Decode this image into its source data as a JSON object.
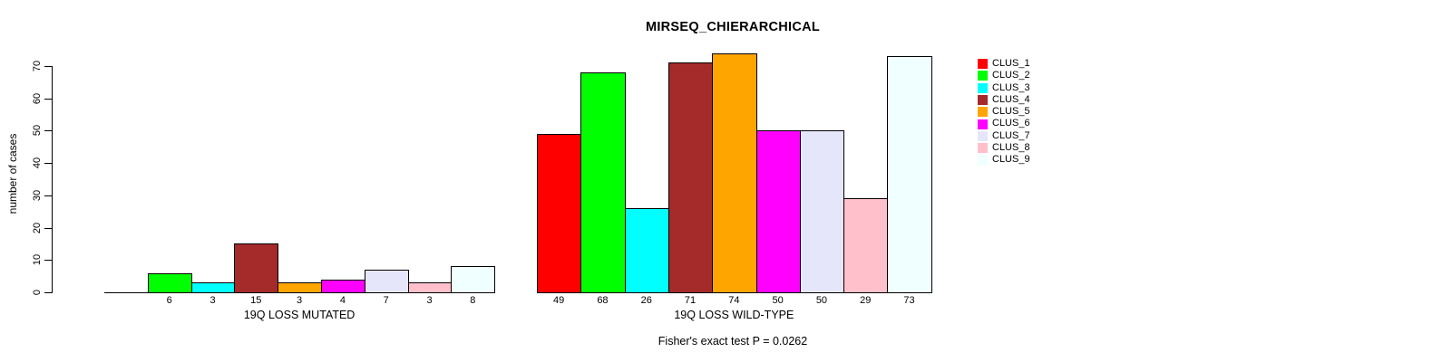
{
  "chart_data": {
    "type": "bar",
    "title": "MIRSEQ_CHIERARCHICAL",
    "ylabel": "number of cases",
    "ylim": [
      0,
      70
    ],
    "yticks": [
      0,
      10,
      20,
      30,
      40,
      50,
      60,
      70
    ],
    "grid": false,
    "legend_position": "right",
    "legend": [
      {
        "label": "CLUS_1",
        "color": "#FF0000"
      },
      {
        "label": "CLUS_2",
        "color": "#00FF00"
      },
      {
        "label": "CLUS_3",
        "color": "#00FFFF"
      },
      {
        "label": "CLUS_4",
        "color": "#A52A2A"
      },
      {
        "label": "CLUS_5",
        "color": "#FFA500"
      },
      {
        "label": "CLUS_6",
        "color": "#FF00FF"
      },
      {
        "label": "CLUS_7",
        "color": "#E6E6FA"
      },
      {
        "label": "CLUS_8",
        "color": "#FFC0CB"
      },
      {
        "label": "CLUS_9",
        "color": "#F0FFFF"
      }
    ],
    "groups": [
      {
        "label": "19Q LOSS MUTATED",
        "values": [
          0,
          6,
          3,
          15,
          3,
          4,
          7,
          3,
          8
        ],
        "bar_labels": [
          "",
          "6",
          "3",
          "15",
          "3",
          "4",
          "7",
          "3",
          "8"
        ]
      },
      {
        "label": "19Q LOSS WILD-TYPE",
        "values": [
          49,
          68,
          26,
          71,
          74,
          50,
          50,
          29,
          73
        ],
        "bar_labels": [
          "49",
          "68",
          "26",
          "71",
          "74",
          "50",
          "50",
          "29",
          "73"
        ]
      }
    ],
    "annotation": "Fisher's exact test P = 0.0262"
  }
}
